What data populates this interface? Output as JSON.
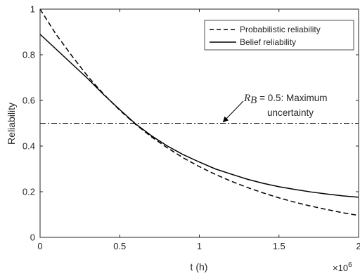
{
  "chart_data": {
    "type": "line",
    "xlabel": "t (h)",
    "ylabel": "Reliability",
    "x_exponent_label": "×10",
    "x_exponent_power": "6",
    "xlim": [
      0,
      2000000
    ],
    "ylim": [
      0,
      1
    ],
    "x_ticks": [
      0,
      500000,
      1000000,
      1500000,
      2000000
    ],
    "x_tick_labels": [
      "0",
      "0.5",
      "1",
      "1.5",
      "2"
    ],
    "y_ticks": [
      0,
      0.2,
      0.4,
      0.6,
      0.8,
      1
    ],
    "y_tick_labels": [
      "0",
      "0.2",
      "0.4",
      "0.6",
      "0.8",
      "1"
    ],
    "grid": false,
    "legend_position": "top-right",
    "series": [
      {
        "name": "Probabilistic reliability",
        "style": "dashed",
        "x": [
          0,
          100000,
          200000,
          300000,
          400000,
          500000,
          600000,
          700000,
          800000,
          900000,
          1000000,
          1100000,
          1200000,
          1300000,
          1400000,
          1500000,
          1600000,
          1700000,
          1800000,
          1900000,
          2000000
        ],
        "y": [
          1.0,
          0.89,
          0.795,
          0.705,
          0.627,
          0.557,
          0.495,
          0.44,
          0.392,
          0.348,
          0.31,
          0.276,
          0.246,
          0.219,
          0.195,
          0.173,
          0.154,
          0.137,
          0.122,
          0.108,
          0.096
        ]
      },
      {
        "name": "Belief reliability",
        "style": "solid",
        "x": [
          0,
          100000,
          200000,
          300000,
          400000,
          500000,
          600000,
          700000,
          800000,
          900000,
          1000000,
          1100000,
          1200000,
          1300000,
          1400000,
          1500000,
          1600000,
          1700000,
          1800000,
          1900000,
          2000000
        ],
        "y": [
          0.89,
          0.825,
          0.76,
          0.695,
          0.625,
          0.56,
          0.497,
          0.445,
          0.4,
          0.362,
          0.33,
          0.3,
          0.277,
          0.255,
          0.237,
          0.222,
          0.21,
          0.199,
          0.19,
          0.182,
          0.176
        ]
      }
    ],
    "reference_line": {
      "y": 0.5,
      "style": "dash-dot"
    },
    "annotation": {
      "math": "R",
      "math_sub": "B",
      "text_line1": " = 0.5: Maximum",
      "text_line2": "uncertainty",
      "arrow_to": {
        "x": 1150000,
        "y": 0.5
      }
    },
    "colors": {
      "lines": "#000000",
      "axes": "#262626"
    }
  }
}
